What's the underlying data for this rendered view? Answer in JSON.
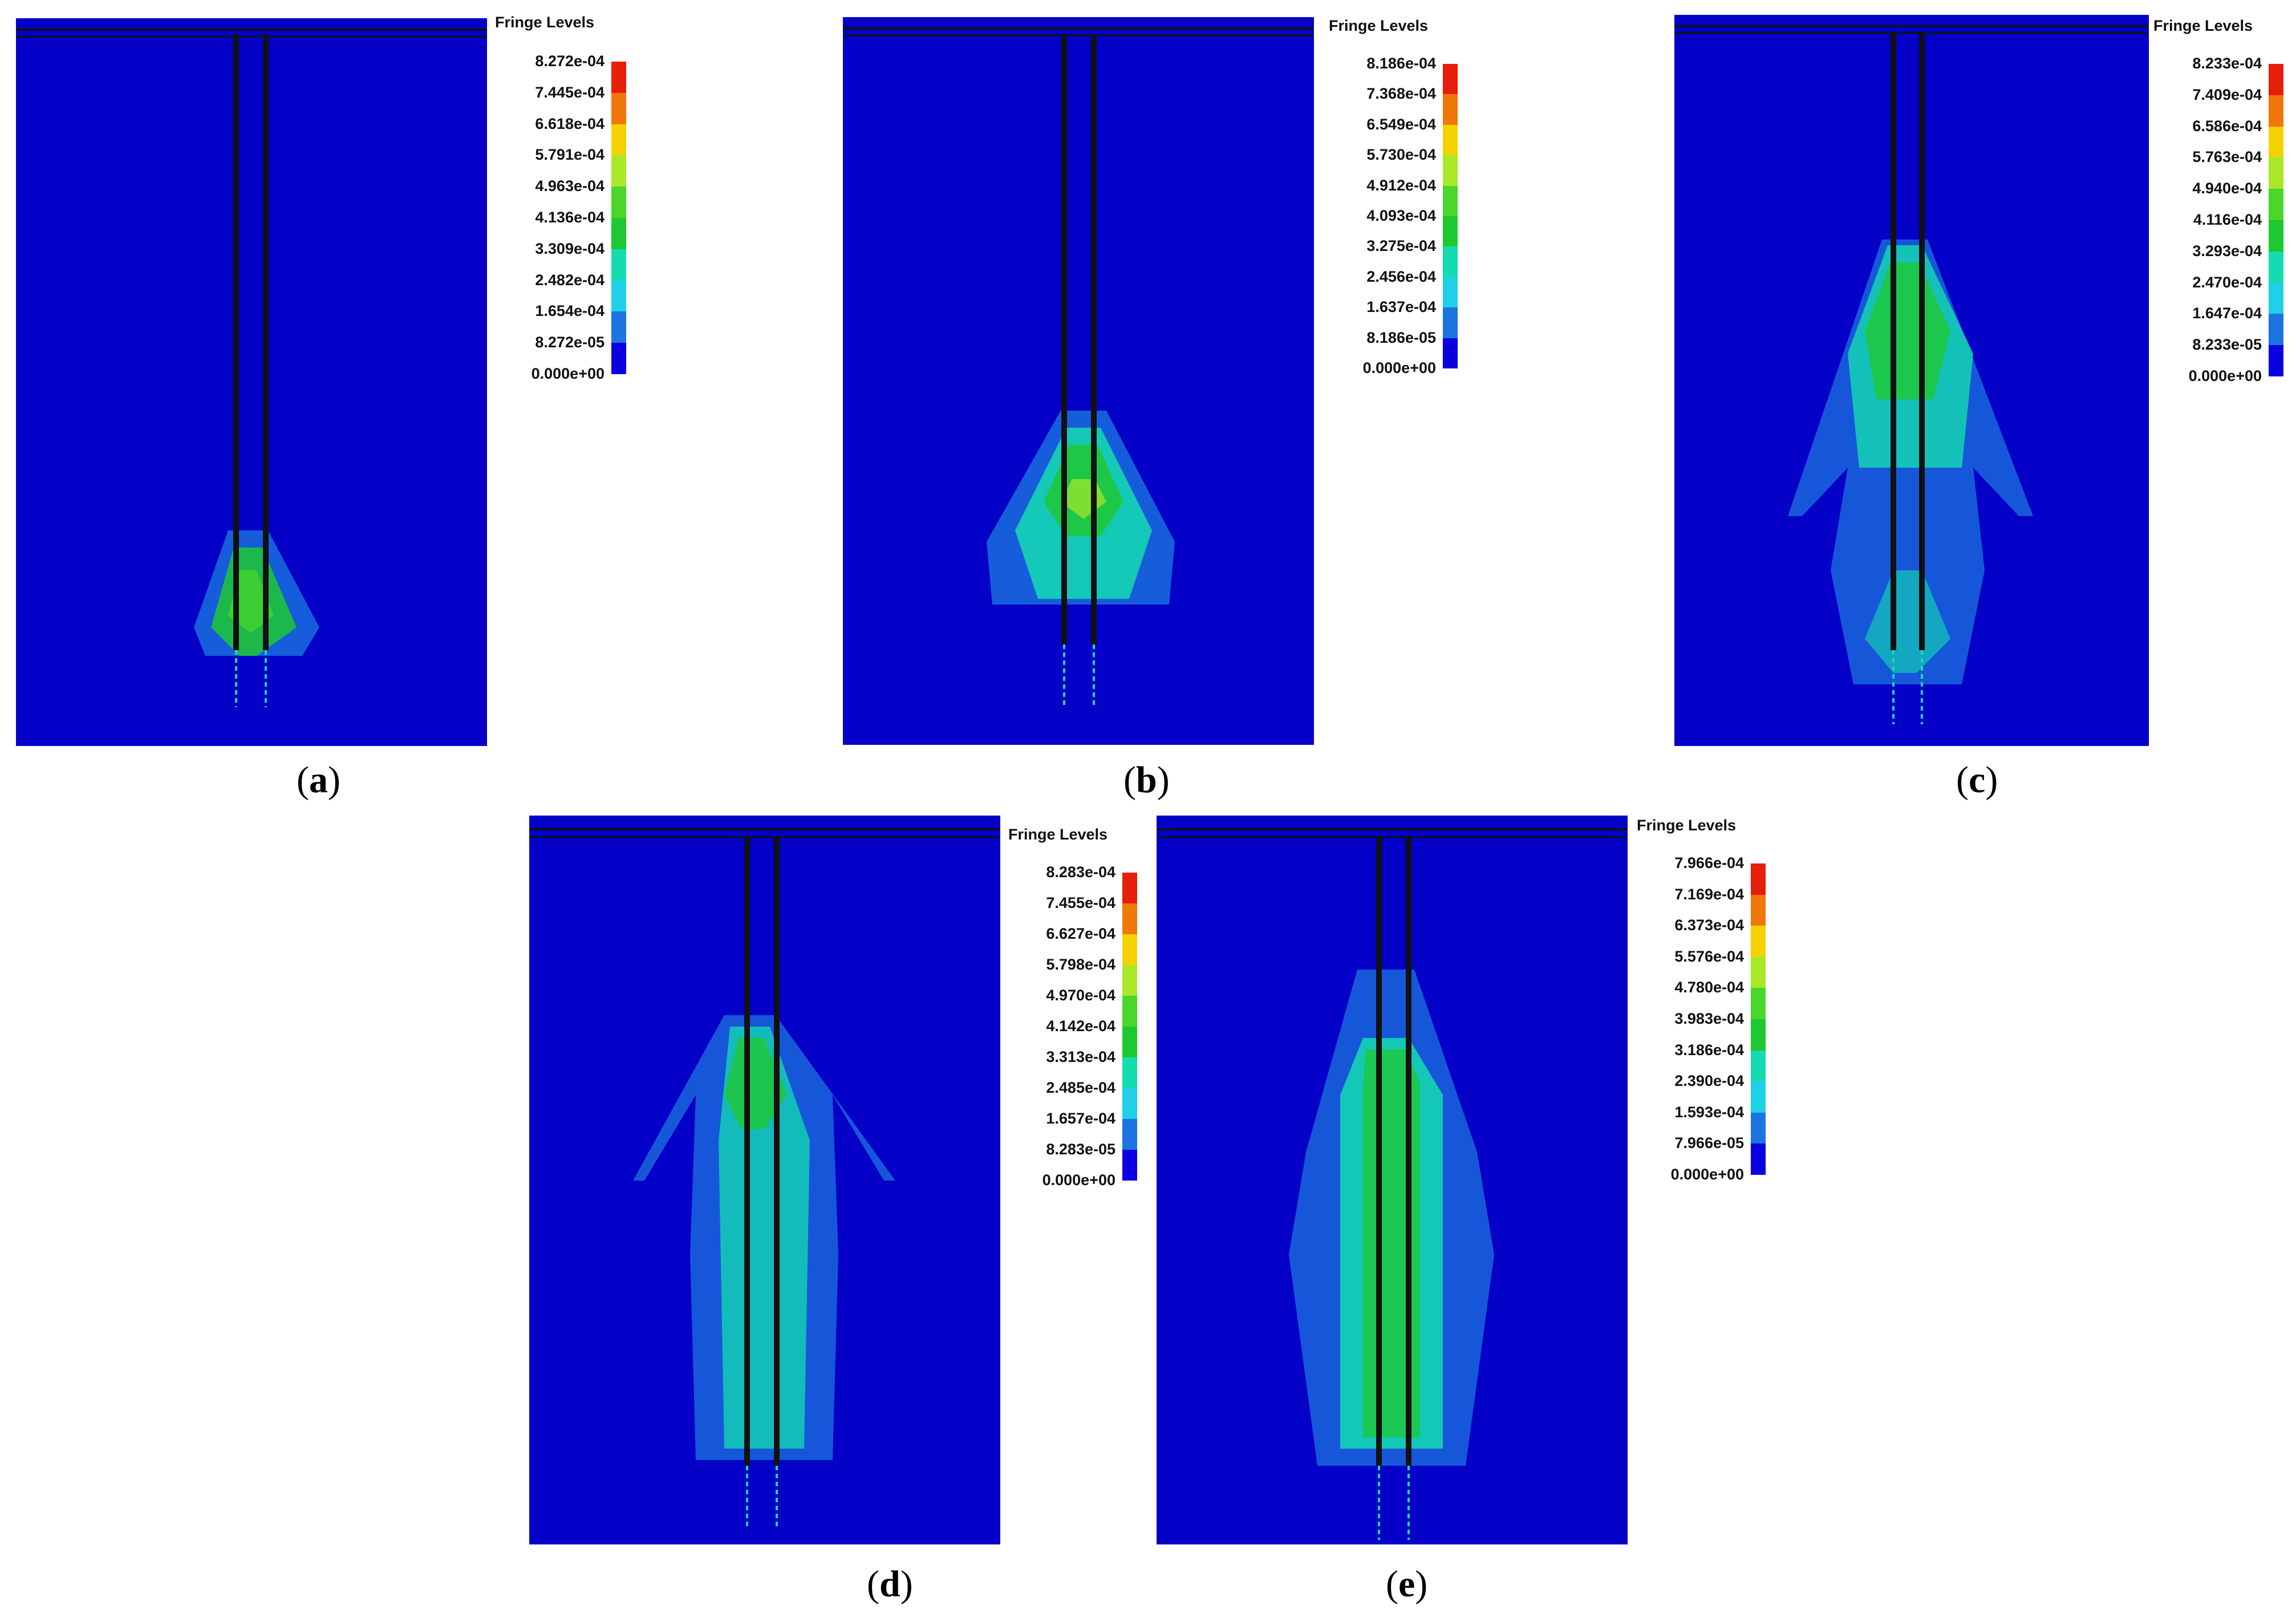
{
  "colors": {
    "background": "#0400c8",
    "scale": [
      "#0a00e0",
      "#1c74e0",
      "#1fd0e8",
      "#14dcb0",
      "#1ec832",
      "#4ad62a",
      "#a8e828",
      "#f4d200",
      "#f0780a",
      "#e61e0a"
    ]
  },
  "legend_title": "Fringe Levels",
  "panels": [
    {
      "id": "a",
      "caption": "a",
      "levels": [
        "8.272e-04",
        "7.445e-04",
        "6.618e-04",
        "5.791e-04",
        "4.963e-04",
        "4.136e-04",
        "3.309e-04",
        "2.482e-04",
        "1.654e-04",
        "8.272e-05",
        "0.000e+00"
      ]
    },
    {
      "id": "b",
      "caption": "b",
      "levels": [
        "8.186e-04",
        "7.368e-04",
        "6.549e-04",
        "5.730e-04",
        "4.912e-04",
        "4.093e-04",
        "3.275e-04",
        "2.456e-04",
        "1.637e-04",
        "8.186e-05",
        "0.000e+00"
      ]
    },
    {
      "id": "c",
      "caption": "c",
      "levels": [
        "8.233e-04",
        "7.409e-04",
        "6.586e-04",
        "5.763e-04",
        "4.940e-04",
        "4.116e-04",
        "3.293e-04",
        "2.470e-04",
        "1.647e-04",
        "8.233e-05",
        "0.000e+00"
      ]
    },
    {
      "id": "d",
      "caption": "d",
      "levels": [
        "8.283e-04",
        "7.455e-04",
        "6.627e-04",
        "5.798e-04",
        "4.970e-04",
        "4.142e-04",
        "3.313e-04",
        "2.485e-04",
        "1.657e-04",
        "8.283e-05",
        "0.000e+00"
      ]
    },
    {
      "id": "e",
      "caption": "e",
      "levels": [
        "7.966e-04",
        "7.169e-04",
        "6.373e-04",
        "5.576e-04",
        "4.780e-04",
        "3.983e-04",
        "3.186e-04",
        "2.390e-04",
        "1.593e-04",
        "7.966e-05",
        "0.000e+00"
      ]
    }
  ]
}
